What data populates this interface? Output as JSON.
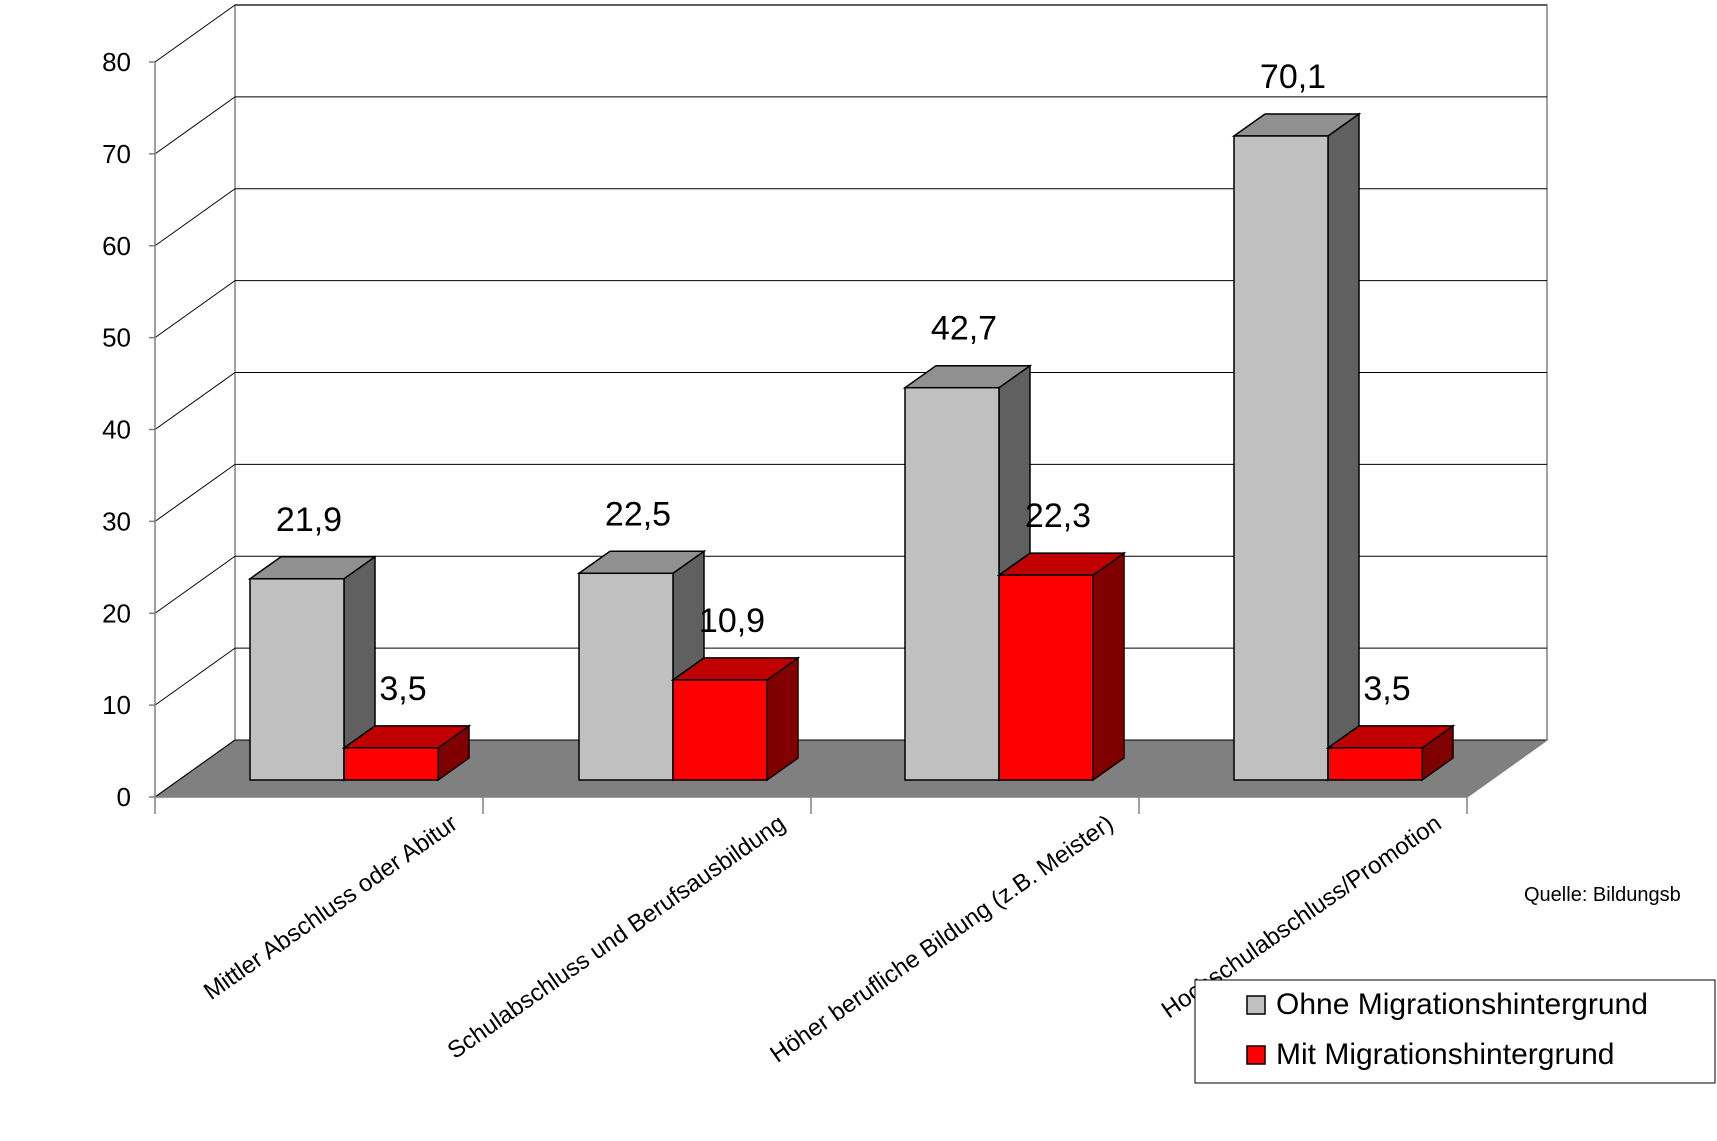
{
  "chart_data": {
    "type": "bar",
    "categories": [
      "Mittler Abschluss oder Abitur",
      "Schulabschluss und Berufsausbildung",
      "Höher berufliche Bildung (z.B. Meister)",
      "Hochschulabschluss/Promotion"
    ],
    "series": [
      {
        "name": "Ohne Migrationshintergrund",
        "values": [
          21.9,
          22.5,
          42.7,
          70.1
        ],
        "labels": [
          "21,9",
          "22,5",
          "42,7",
          "70,1"
        ],
        "color": "#c0c0c0",
        "side_color": "#606060",
        "top_color": "#909090"
      },
      {
        "name": "Mit Migrationshintergrund",
        "values": [
          3.5,
          10.9,
          22.3,
          3.5
        ],
        "labels": [
          "3,5",
          "10,9",
          "22,3",
          "3,5"
        ],
        "color": "#ff0000",
        "side_color": "#800000",
        "top_color": "#c00000"
      }
    ],
    "ylim": [
      0,
      80
    ],
    "yticks": [
      0,
      10,
      20,
      30,
      40,
      50,
      60,
      70,
      80
    ],
    "grid": true,
    "legend": "bottom-right",
    "source": "Quelle: Bildungsb",
    "floor_color": "#808080"
  }
}
